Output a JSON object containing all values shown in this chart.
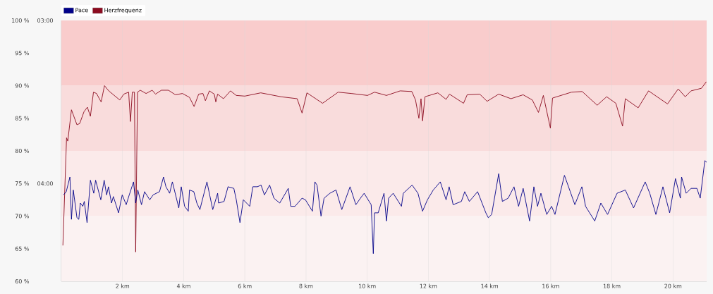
{
  "chart_data": {
    "type": "line",
    "xlim": [
      0,
      21.1
    ],
    "xticks": [
      {
        "value": 2,
        "label": "2 km"
      },
      {
        "value": 4,
        "label": "4 km"
      },
      {
        "value": 6,
        "label": "6 km"
      },
      {
        "value": 8,
        "label": "8 km"
      },
      {
        "value": 10,
        "label": "10 km"
      },
      {
        "value": 12,
        "label": "12 km"
      },
      {
        "value": 14,
        "label": "14 km"
      },
      {
        "value": 16,
        "label": "16 km"
      },
      {
        "value": 18,
        "label": "18 km"
      },
      {
        "value": 20,
        "label": "20 km"
      }
    ],
    "ylim": [
      60,
      100
    ],
    "yticks": [
      {
        "value": 60,
        "label": "60 %"
      },
      {
        "value": 65,
        "label": "65 %"
      },
      {
        "value": 70,
        "label": "70 %"
      },
      {
        "value": 75,
        "label": "75 %"
      },
      {
        "value": 80,
        "label": "80 %"
      },
      {
        "value": 85,
        "label": "85 %"
      },
      {
        "value": 90,
        "label": "90 %"
      },
      {
        "value": 95,
        "label": "95 %"
      },
      {
        "value": 100,
        "label": "100 %"
      }
    ],
    "y2lim": [
      4.6,
      3.0
    ],
    "y2ticks": [
      {
        "value": 3,
        "label": "03:00"
      },
      {
        "value": 4,
        "label": "04:00"
      }
    ],
    "grid": "x",
    "legend": "top left",
    "bands": [
      {
        "axis": "y",
        "from": 90,
        "to": 100,
        "color": "#f9cccc"
      },
      {
        "axis": "y",
        "from": 80,
        "to": 90,
        "color": "#f9dcdc"
      },
      {
        "axis": "y",
        "from": 70,
        "to": 80,
        "color": "#fbeaea"
      },
      {
        "axis": "y",
        "from": 60,
        "to": 70,
        "color": "#fbf2f2"
      }
    ],
    "series": [
      {
        "name": "Pace",
        "color": "#000088",
        "axis": "y2",
        "x": [
          0.07,
          0.16,
          0.28,
          0.33,
          0.39,
          0.51,
          0.57,
          0.62,
          0.7,
          0.75,
          0.84,
          0.95,
          1.06,
          1.12,
          1.29,
          1.4,
          1.48,
          1.54,
          1.64,
          1.7,
          1.87,
          1.99,
          2.12,
          2.22,
          2.36,
          2.43,
          2.5,
          2.62,
          2.72,
          2.89,
          3.0,
          3.21,
          3.34,
          3.42,
          3.54,
          3.63,
          3.84,
          3.92,
          4.03,
          4.15,
          4.19,
          4.33,
          4.43,
          4.53,
          4.76,
          4.95,
          5.11,
          5.14,
          5.32,
          5.45,
          5.64,
          5.72,
          5.84,
          5.95,
          6.16,
          6.26,
          6.41,
          6.53,
          6.64,
          6.81,
          6.95,
          7.14,
          7.42,
          7.5,
          7.64,
          7.87,
          7.98,
          8.21,
          8.29,
          8.36,
          8.49,
          8.59,
          8.78,
          8.98,
          9.17,
          9.44,
          9.63,
          9.78,
          9.9,
          10.13,
          10.2,
          10.24,
          10.36,
          10.55,
          10.63,
          10.7,
          10.85,
          11.12,
          11.18,
          11.47,
          11.66,
          11.81,
          11.97,
          12.16,
          12.39,
          12.58,
          12.68,
          12.81,
          13.08,
          13.19,
          13.34,
          13.61,
          13.88,
          13.96,
          14.07,
          14.3,
          14.42,
          14.61,
          14.8,
          14.95,
          15.1,
          15.31,
          15.45,
          15.57,
          15.68,
          15.87,
          16.03,
          16.14,
          16.45,
          16.64,
          16.79,
          17.02,
          17.14,
          17.44,
          17.64,
          17.86,
          18.17,
          18.44,
          18.71,
          19.09,
          19.24,
          19.44,
          19.67,
          19.89,
          20.08,
          20.24,
          20.28,
          20.43,
          20.59,
          20.78,
          20.89,
          21.04,
          21.1
        ],
        "values": [
          4.07,
          4.05,
          3.96,
          4.22,
          4.04,
          4.21,
          4.22,
          4.12,
          4.14,
          4.11,
          4.24,
          3.98,
          4.06,
          3.98,
          4.1,
          3.98,
          4.07,
          4.02,
          4.12,
          4.08,
          4.18,
          4.07,
          4.13,
          4.07,
          3.99,
          4.12,
          4.04,
          4.13,
          4.05,
          4.1,
          4.07,
          4.05,
          3.96,
          4.02,
          4.06,
          3.99,
          4.15,
          4.02,
          4.14,
          4.17,
          4.04,
          4.05,
          4.12,
          4.16,
          3.99,
          4.16,
          4.06,
          4.12,
          4.11,
          4.02,
          4.03,
          4.1,
          4.24,
          4.1,
          4.14,
          4.02,
          4.02,
          4.01,
          4.07,
          4.01,
          4.09,
          4.12,
          4.03,
          4.14,
          4.14,
          4.09,
          4.1,
          4.17,
          3.99,
          4.01,
          4.2,
          4.09,
          4.06,
          4.04,
          4.16,
          4.02,
          4.13,
          4.09,
          4.06,
          4.13,
          4.43,
          4.18,
          4.18,
          4.06,
          4.23,
          4.09,
          4.06,
          4.14,
          4.06,
          4.01,
          4.06,
          4.17,
          4.1,
          4.04,
          3.99,
          4.1,
          4.02,
          4.13,
          4.11,
          4.05,
          4.11,
          4.05,
          4.18,
          4.21,
          4.19,
          3.94,
          4.11,
          4.09,
          4.02,
          4.14,
          4.03,
          4.23,
          4.02,
          4.14,
          4.06,
          4.19,
          4.14,
          4.19,
          3.95,
          4.05,
          4.13,
          4.02,
          4.14,
          4.23,
          4.12,
          4.19,
          4.06,
          4.04,
          4.15,
          3.99,
          4.06,
          4.19,
          4.02,
          4.18,
          3.97,
          4.09,
          3.96,
          4.06,
          4.03,
          4.03,
          4.09,
          3.86,
          3.87
        ]
      },
      {
        "name": "Herzfrequenz",
        "color": "#8b0a1e",
        "x": [
          0.05,
          0.17,
          0.21,
          0.33,
          0.51,
          0.6,
          0.74,
          0.85,
          0.95,
          1.05,
          1.15,
          1.3,
          1.41,
          1.55,
          1.91,
          2.04,
          2.2,
          2.26,
          2.32,
          2.39,
          2.43,
          2.49,
          2.58,
          2.77,
          2.97,
          3.08,
          3.27,
          3.5,
          3.73,
          3.96,
          4.19,
          4.34,
          4.49,
          4.63,
          4.71,
          4.84,
          5.0,
          5.05,
          5.11,
          5.3,
          5.53,
          5.72,
          6.0,
          6.52,
          7.18,
          7.71,
          7.87,
          8.03,
          8.54,
          9.05,
          9.48,
          10.01,
          10.24,
          10.63,
          11.08,
          11.46,
          11.58,
          11.69,
          11.76,
          11.81,
          11.89,
          12.31,
          12.58,
          12.69,
          13.15,
          13.27,
          13.68,
          13.92,
          14.3,
          14.7,
          15.1,
          15.4,
          15.6,
          15.76,
          15.99,
          16.06,
          16.68,
          17.03,
          17.52,
          17.83,
          18.13,
          18.35,
          18.44,
          18.86,
          19.2,
          19.82,
          20.17,
          20.4,
          20.59,
          20.93,
          21.09
        ],
        "values": [
          65.5,
          82,
          81.5,
          86.3,
          84,
          84.2,
          86,
          86.7,
          85.3,
          89,
          88.8,
          87.5,
          90,
          89.2,
          87.8,
          88.7,
          89,
          84.5,
          89,
          89,
          64.5,
          89,
          89.3,
          88.8,
          89.3,
          88.7,
          89.3,
          89.3,
          88.6,
          88.8,
          88.2,
          86.8,
          88.7,
          88.8,
          87.7,
          89.2,
          88.7,
          87.5,
          88.7,
          88,
          89.2,
          88.5,
          88.4,
          88.9,
          88.3,
          88,
          85.8,
          88.9,
          87.3,
          89,
          88.8,
          88.5,
          89,
          88.5,
          89.2,
          89.1,
          87.8,
          85,
          88,
          84.6,
          88.3,
          88.9,
          87.9,
          88.7,
          87.3,
          88.6,
          88.7,
          87.6,
          88.7,
          88,
          88.6,
          87.8,
          85.9,
          88.5,
          83.5,
          88.1,
          89,
          89.1,
          87,
          88.3,
          87.3,
          83.8,
          88,
          86.6,
          89.2,
          87.2,
          89.5,
          88.3,
          89.2,
          89.6,
          90.6
        ]
      }
    ]
  }
}
